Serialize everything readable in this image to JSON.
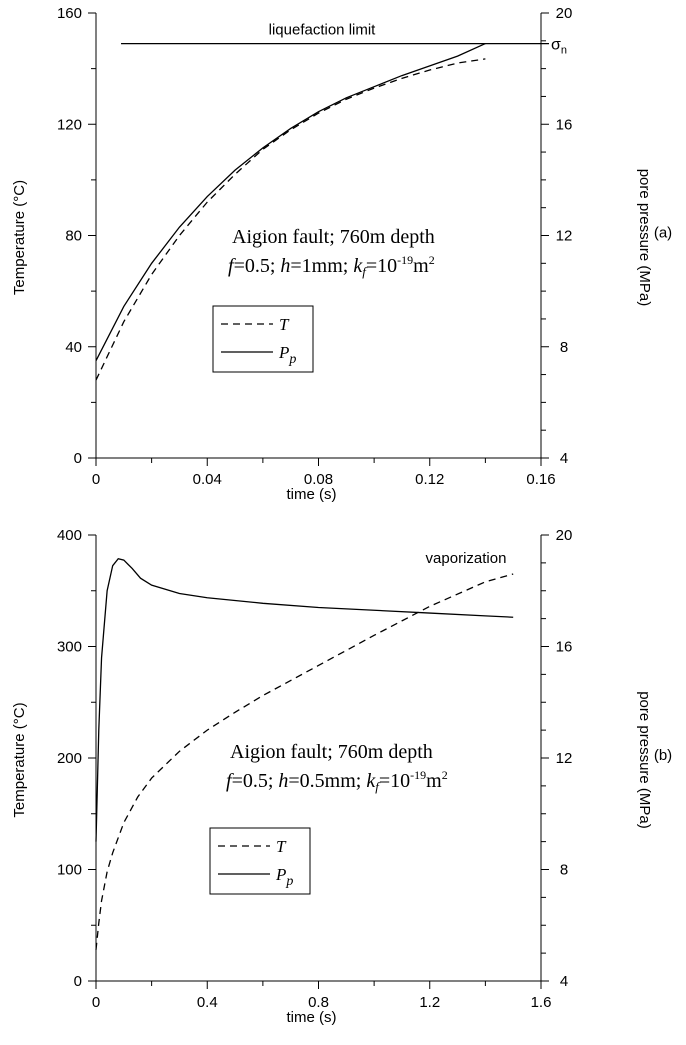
{
  "chart_data": [
    {
      "type": "line",
      "panel_label": "(a)",
      "xlabel": "time (s)",
      "ylabel": "Temperature (°C)",
      "y2label": "pore pressure (MPa)",
      "xlim": [
        0,
        0.16
      ],
      "ylim": [
        0,
        160
      ],
      "y2lim": [
        4,
        20
      ],
      "xticks": [
        "0",
        "0.04",
        "0.08",
        "0.12",
        "0.16"
      ],
      "yticks": [
        "0",
        "40",
        "80",
        "120",
        "160"
      ],
      "y2ticks": [
        "4",
        "8",
        "12",
        "16",
        "20"
      ],
      "annotation_line1": "Aigion fault; 760m depth",
      "annotation_line2": {
        "f": "f",
        "f_val": "=0.5; ",
        "h": "h",
        "h_val": "=1mm; ",
        "k": "k",
        "k_sub": "f",
        "k_val": "=10",
        "k_exp": "-19",
        "k_unit": "m",
        "k_unit_exp": "2"
      },
      "hline": {
        "label": "liquefaction limit",
        "sigma": "σ",
        "sigma_sub": "n",
        "value": 18.9,
        "axis": "y2",
        "x_start": 0.009,
        "x_end": 0.16
      },
      "legend_placement": "center-left",
      "series": [
        {
          "name": "T",
          "axis": "y",
          "style": "dashed",
          "x": [
            0,
            0.01,
            0.02,
            0.03,
            0.04,
            0.05,
            0.06,
            0.07,
            0.08,
            0.09,
            0.1,
            0.11,
            0.12,
            0.13,
            0.14
          ],
          "y": [
            28,
            49,
            66,
            80,
            92,
            102,
            111,
            118,
            124,
            129,
            133,
            136.5,
            139.5,
            142,
            143.5
          ]
        },
        {
          "name": "P",
          "name_sub": "p",
          "axis": "y2",
          "style": "solid",
          "x": [
            0,
            0.01,
            0.02,
            0.03,
            0.04,
            0.05,
            0.06,
            0.07,
            0.08,
            0.09,
            0.1,
            0.11,
            0.12,
            0.13,
            0.14
          ],
          "y": [
            7.5,
            9.45,
            11.0,
            12.3,
            13.4,
            14.35,
            15.15,
            15.85,
            16.45,
            16.95,
            17.35,
            17.75,
            18.1,
            18.45,
            18.9
          ]
        }
      ]
    },
    {
      "type": "line",
      "panel_label": "(b)",
      "xlabel": "time (s)",
      "ylabel": "Temperature (°C)",
      "y2label": "pore pressure (MPa)",
      "xlim": [
        0,
        1.6
      ],
      "ylim": [
        0,
        400
      ],
      "y2lim": [
        4,
        20
      ],
      "xticks": [
        "0",
        "0.4",
        "0.8",
        "1.2",
        "1.6"
      ],
      "yticks": [
        "0",
        "100",
        "200",
        "300",
        "400"
      ],
      "y2ticks": [
        "4",
        "8",
        "12",
        "16",
        "20"
      ],
      "annotation_line1": "Aigion fault; 760m depth",
      "annotation_line2": {
        "f": "f",
        "f_val": "=0.5; ",
        "h": "h",
        "h_val": "=0.5mm; ",
        "k": "k",
        "k_sub": "f",
        "k_val": "=10",
        "k_exp": "-19",
        "k_unit": "m",
        "k_unit_exp": "2"
      },
      "top_label": "vaporization",
      "legend_placement": "bottom-left",
      "series": [
        {
          "name": "T",
          "axis": "y",
          "style": "dashed",
          "x": [
            0,
            0.01,
            0.02,
            0.04,
            0.06,
            0.1,
            0.15,
            0.2,
            0.3,
            0.4,
            0.5,
            0.6,
            0.8,
            1.0,
            1.2,
            1.4,
            1.5
          ],
          "y": [
            28,
            52,
            72,
            98,
            115,
            142,
            165,
            182,
            206,
            225,
            241,
            256,
            283,
            310,
            336,
            358,
            365
          ]
        },
        {
          "name": "P",
          "name_sub": "p",
          "axis": "y2",
          "style": "solid",
          "x": [
            0,
            0.01,
            0.02,
            0.04,
            0.06,
            0.08,
            0.1,
            0.13,
            0.16,
            0.2,
            0.3,
            0.4,
            0.6,
            0.8,
            1.0,
            1.2,
            1.4,
            1.5
          ],
          "y": [
            9,
            13.0,
            15.6,
            18.0,
            18.9,
            19.15,
            19.1,
            18.8,
            18.45,
            18.2,
            17.9,
            17.75,
            17.55,
            17.4,
            17.3,
            17.2,
            17.1,
            17.05
          ]
        }
      ]
    }
  ]
}
